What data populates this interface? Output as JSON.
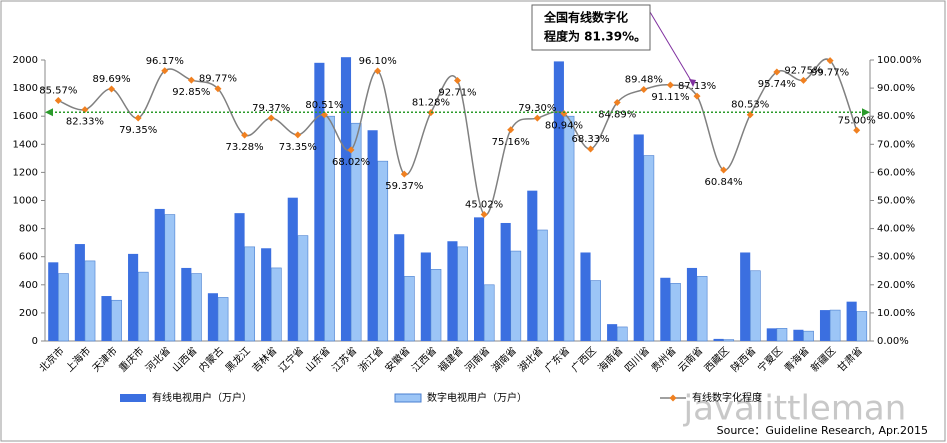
{
  "chart_data": {
    "type": "bar-line",
    "categories": [
      "北京市",
      "上海市",
      "天津市",
      "重庆市",
      "河北省",
      "山西省",
      "内蒙古",
      "黑龙江",
      "吉林省",
      "辽宁省",
      "山东省",
      "江苏省",
      "浙江省",
      "安徽省",
      "江西省",
      "福建省",
      "河南省",
      "湖南省",
      "湖北省",
      "广东省",
      "广西区",
      "海南省",
      "四川省",
      "贵州省",
      "云南省",
      "西藏区",
      "陕西省",
      "宁夏区",
      "青海省",
      "新疆区",
      "甘肃省"
    ],
    "series": [
      {
        "name": "有线电视用户（万户）",
        "kind": "bar",
        "color": "#3b6fe0",
        "values": [
          560,
          690,
          320,
          620,
          940,
          520,
          340,
          910,
          660,
          1020,
          1980,
          2020,
          1500,
          760,
          630,
          710,
          880,
          840,
          1070,
          1990,
          630,
          120,
          1470,
          450,
          520,
          15,
          630,
          90,
          80,
          220,
          280
        ]
      },
      {
        "name": "数字电视用户（万户）",
        "kind": "bar",
        "color": "#9cc5f6",
        "values": [
          480,
          570,
          290,
          490,
          900,
          480,
          310,
          670,
          520,
          750,
          1600,
          1550,
          1280,
          460,
          510,
          670,
          400,
          640,
          790,
          1600,
          430,
          100,
          1320,
          410,
          460,
          10,
          500,
          90,
          70,
          220,
          210
        ]
      },
      {
        "name": "有线数字化程度",
        "kind": "line",
        "axis": "y2",
        "color": "#808080",
        "marker_color": "#f08020",
        "values": [
          85.57,
          82.33,
          89.69,
          79.35,
          96.17,
          92.85,
          89.77,
          73.28,
          79.37,
          73.35,
          80.51,
          68.02,
          96.1,
          59.37,
          81.28,
          92.71,
          45.02,
          75.16,
          79.3,
          80.94,
          68.33,
          84.89,
          89.48,
          91.11,
          87.13,
          60.84,
          80.53,
          95.74,
          92.75,
          99.77,
          75.0
        ],
        "value_labels": [
          "85.57%",
          "82.33%",
          "89.69%",
          "79.35%",
          "96.17%",
          "92.85%",
          "89.77%",
          "73.28%",
          "79.37%",
          "73.35%",
          "80.51%",
          "68.02%",
          "96.10%",
          "59.37%",
          "81.28%",
          "92.71%",
          "45.02%",
          "75.16%",
          "79.30%",
          "80.94%",
          "68.33%",
          "84.89%",
          "89.48%",
          "91.11%",
          "87.13%",
          "60.84%",
          "80.53%",
          "95.74%",
          "92.75%",
          "99.77%",
          "75.00%"
        ]
      }
    ],
    "average": {
      "value": 81.39,
      "axis": "y2",
      "color": "#2a9a2a",
      "text": [
        "全国有线数字化",
        "程度为 81.39%。"
      ]
    },
    "ylim": [
      0,
      2000
    ],
    "yticks": [
      0,
      200,
      400,
      600,
      800,
      1000,
      1200,
      1400,
      1600,
      1800,
      2000
    ],
    "y2lim": [
      0,
      100
    ],
    "y2ticks": [
      {
        "value": 0,
        "label": "0.00%"
      },
      {
        "value": 10,
        "label": "10.00%"
      },
      {
        "value": 20,
        "label": "20.00%"
      },
      {
        "value": 30,
        "label": "30.00%"
      },
      {
        "value": 40,
        "label": "40.00%"
      },
      {
        "value": 50,
        "label": "50.00%"
      },
      {
        "value": 60,
        "label": "60.00%"
      },
      {
        "value": 70,
        "label": "70.00%"
      },
      {
        "value": 80,
        "label": "80.00%"
      },
      {
        "value": 90,
        "label": "90.00%"
      },
      {
        "value": 100,
        "label": "100.00%"
      }
    ],
    "source": "Source：Guideline Research, Apr.2015",
    "watermark": "javalittleman"
  }
}
